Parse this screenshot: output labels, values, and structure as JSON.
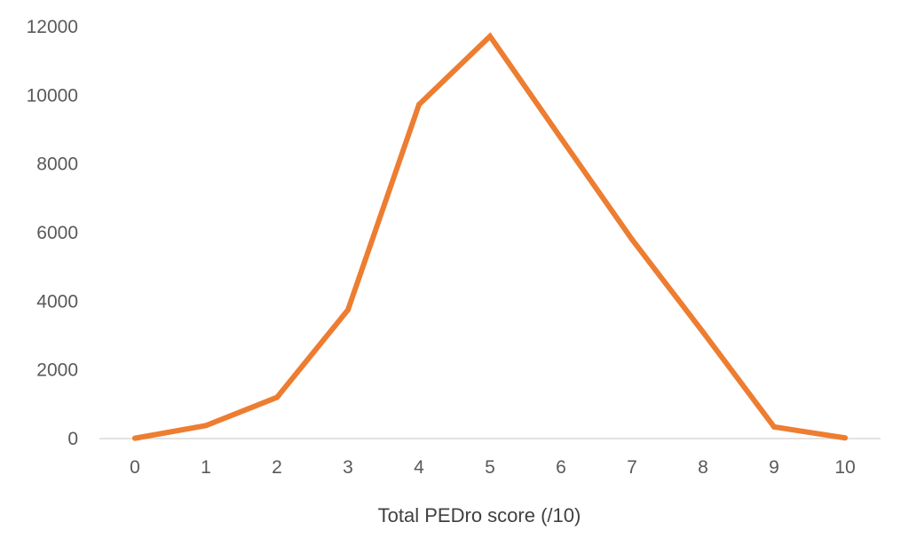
{
  "chart_data": {
    "type": "line",
    "title": "",
    "xlabel": "Total PEDro score (/10)",
    "ylabel": "",
    "x": [
      0,
      1,
      2,
      3,
      4,
      5,
      6,
      7,
      8,
      9,
      10
    ],
    "x_tick_labels": [
      "0",
      "1",
      "2",
      "3",
      "4",
      "5",
      "6",
      "7",
      "8",
      "9",
      "10"
    ],
    "y_tick_labels": [
      "0",
      "2000",
      "4000",
      "6000",
      "8000",
      "10000",
      "12000"
    ],
    "y_ticks": [
      0,
      2000,
      4000,
      6000,
      8000,
      10000,
      12000
    ],
    "ylim": [
      0,
      12000
    ],
    "grid": false,
    "legend": "none",
    "series": [
      {
        "values": [
          10,
          380,
          1200,
          3750,
          9730,
          11720,
          8750,
          5800,
          3100,
          340,
          20
        ],
        "color": "#ED7D31"
      }
    ]
  }
}
